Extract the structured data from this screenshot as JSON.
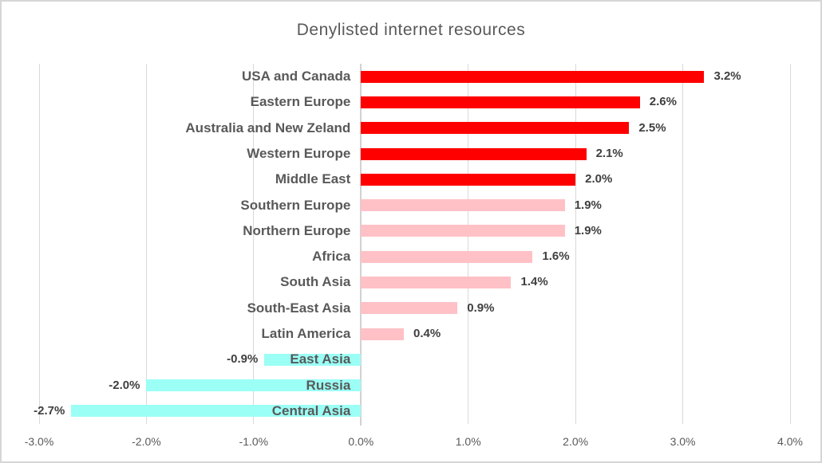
{
  "chart_data": {
    "type": "bar",
    "orientation": "horizontal",
    "title": "Denylisted internet resources",
    "categories": [
      "USA and Canada",
      "Eastern Europe",
      "Australia and New Zeland",
      "Western Europe",
      "Middle East",
      "Southern Europe",
      "Northern Europe",
      "Africa",
      "South Asia",
      "South-East Asia",
      "Latin America",
      "East Asia",
      "Russia",
      "Central Asia"
    ],
    "values": [
      3.2,
      2.6,
      2.5,
      2.1,
      2.0,
      1.9,
      1.9,
      1.6,
      1.4,
      0.9,
      0.4,
      -0.9,
      -2.0,
      -2.7
    ],
    "value_labels": [
      "3.2%",
      "2.6%",
      "2.5%",
      "2.1%",
      "2.0%",
      "1.9%",
      "1.9%",
      "1.6%",
      "1.4%",
      "0.9%",
      "0.4%",
      "-0.9%",
      "-2.0%",
      "-2.7%"
    ],
    "bar_color_groups": [
      "red",
      "red",
      "red",
      "red",
      "red",
      "pink",
      "pink",
      "pink",
      "pink",
      "pink",
      "pink",
      "cyan",
      "cyan",
      "cyan"
    ],
    "x_ticks": [
      {
        "value": -3,
        "label": "-3.0%"
      },
      {
        "value": -2,
        "label": "-2.0%"
      },
      {
        "value": -1,
        "label": "-1.0%"
      },
      {
        "value": 0,
        "label": "0.0%"
      },
      {
        "value": 1,
        "label": "1.0%"
      },
      {
        "value": 2,
        "label": "2.0%"
      },
      {
        "value": 3,
        "label": "3.0%"
      },
      {
        "value": 4,
        "label": "4.0%"
      }
    ],
    "xlim": [
      -3,
      4
    ],
    "grid": true,
    "legend": "none",
    "colors": {
      "red": "#fe0000",
      "pink": "#ffc1c6",
      "cyan": "#9bfff6",
      "gridline": "#d9d9d9",
      "zero_axis": "#d2d2d2",
      "title_text": "#595959",
      "category_text": "#595959",
      "value_text": "#3f3f3f",
      "tick_text": "#595959"
    }
  }
}
